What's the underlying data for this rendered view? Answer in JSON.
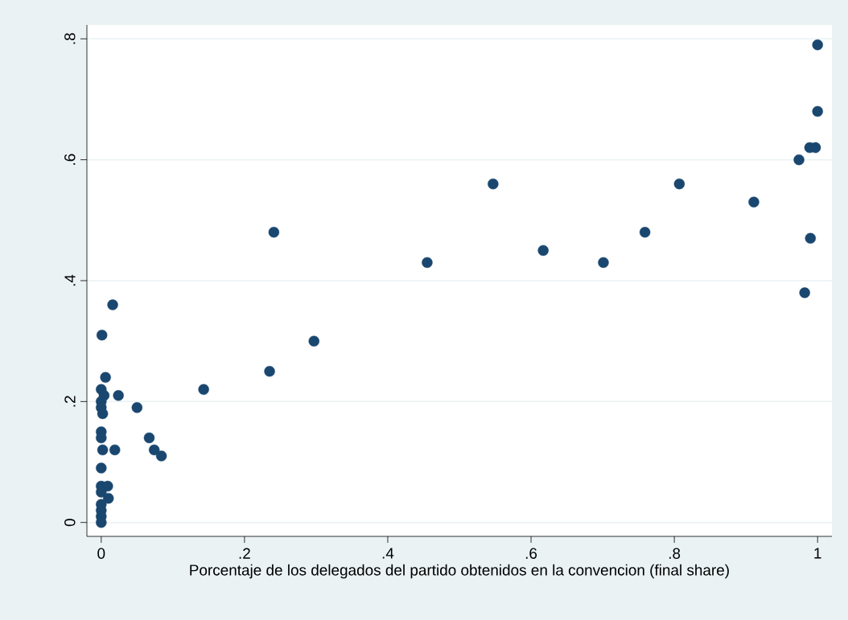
{
  "chart_data": {
    "type": "scatter",
    "xlabel": "Porcentaje de los delegados del partido obtenidos en la convencion (final share)",
    "x": [
      0.016,
      0.001,
      0.006,
      0,
      0.004,
      0.024,
      0,
      0,
      0.002,
      0.05,
      0.143,
      0,
      0,
      0.002,
      0.019,
      0.067,
      0.074,
      0.084,
      0,
      0,
      0.009,
      0,
      0.01,
      0,
      0,
      0,
      0,
      0.235,
      0.241,
      0.297,
      0.455,
      0.547,
      0.617,
      0.701,
      0.759,
      0.807,
      0.911,
      0.974,
      0.989,
      0.997,
      1,
      1,
      0.99,
      0.982
    ],
    "values": [
      0.36,
      0.31,
      0.24,
      0.22,
      0.21,
      0.21,
      0.2,
      0.19,
      0.18,
      0.19,
      0.22,
      0.15,
      0.14,
      0.12,
      0.12,
      0.14,
      0.12,
      0.11,
      0.09,
      0.06,
      0.06,
      0.05,
      0.04,
      0.03,
      0.02,
      0.01,
      0,
      0.25,
      0.48,
      0.3,
      0.43,
      0.56,
      0.45,
      0.43,
      0.48,
      0.56,
      0.53,
      0.6,
      0.62,
      0.62,
      0.79,
      0.68,
      0.47,
      0.38
    ],
    "color": "#1a476f",
    "marker": "circle",
    "xlim": [
      -0.02,
      1.02
    ],
    "ylim": [
      -0.023,
      0.823
    ],
    "xticks": [
      0,
      {
        "value": 0.2,
        "label": ".2"
      },
      {
        "value": 0.4,
        "label": ".4"
      },
      {
        "value": 0.6,
        "label": ".6"
      },
      {
        "value": 0.8,
        "label": ".8"
      },
      1
    ],
    "yticks": [
      0,
      {
        "value": 0.2,
        "label": ".2"
      },
      {
        "value": 0.4,
        "label": ".4"
      },
      {
        "value": 0.6,
        "label": ".6"
      },
      {
        "value": 0.8,
        "label": ".8"
      }
    ],
    "grid": "y"
  }
}
